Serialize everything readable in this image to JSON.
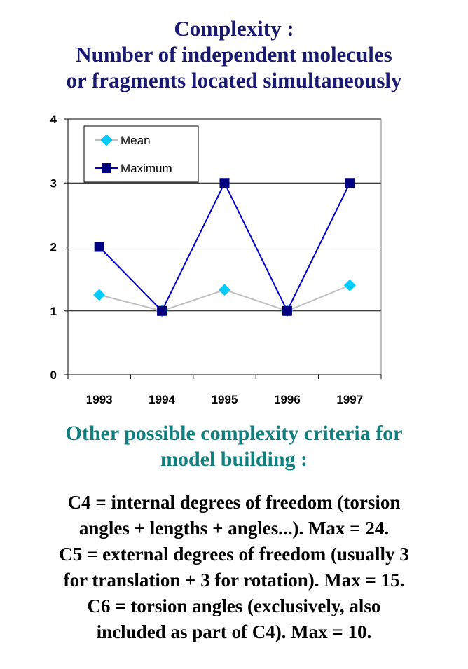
{
  "title": {
    "line1": "Complexity :",
    "line2": "Number of independent molecules",
    "line3": "or fragments located simultaneously"
  },
  "chart_data": {
    "type": "line",
    "categories": [
      "1993",
      "1994",
      "1995",
      "1996",
      "1997"
    ],
    "series": [
      {
        "name": "Mean",
        "values": [
          1.25,
          1.0,
          1.33,
          1.0,
          1.4
        ],
        "color": "#c0c0c0",
        "marker": "diamond",
        "marker_color": "#00ccff"
      },
      {
        "name": "Maximum",
        "values": [
          2,
          1,
          3,
          1,
          3
        ],
        "color": "#0000cc",
        "marker": "square",
        "marker_color": "#000080"
      }
    ],
    "ylim": [
      0,
      4
    ],
    "yticks": [
      "0",
      "1",
      "2",
      "3",
      "4"
    ],
    "grid": true,
    "legend_position": "top-left"
  },
  "subtitle": {
    "line1": "Other possible complexity criteria for",
    "line2": "model building :"
  },
  "criteria": [
    "C4 = internal degrees of freedom (torsion",
    "angles + lengths + angles...). Max = 24.",
    "C5 = external degrees of freedom (usually 3",
    "for translation + 3 for rotation). Max = 15.",
    "C6 = torsion angles (exclusively, also",
    "included as part of C4). Max = 10."
  ]
}
